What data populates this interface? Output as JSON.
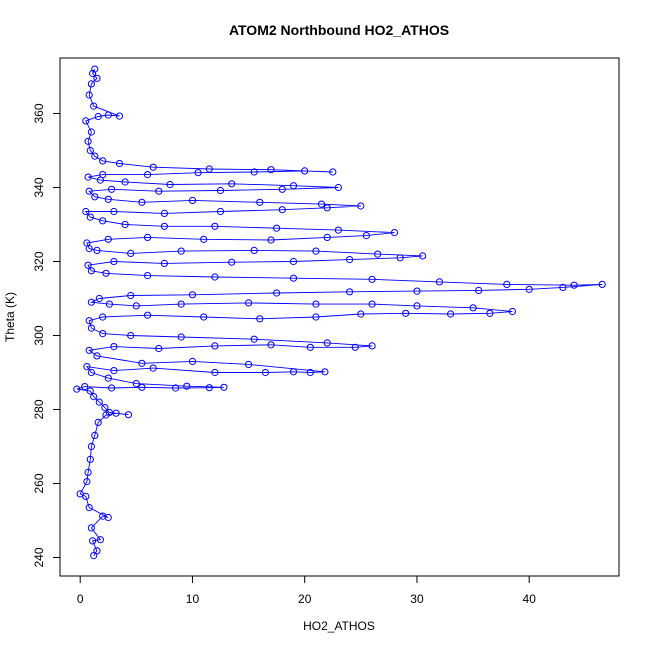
{
  "chart_data": {
    "type": "scatter",
    "title": "ATOM2 Northbound HO2_ATHOS",
    "xlabel": "HO2_ATHOS",
    "ylabel": "Theta (K)",
    "xlim": [
      -1.8,
      48.0
    ],
    "ylim": [
      235.0,
      375.0
    ],
    "xticks": [
      0,
      10,
      20,
      30,
      40
    ],
    "yticks": [
      240,
      260,
      280,
      300,
      320,
      340,
      360
    ],
    "grid": false,
    "legend": "none",
    "series": [
      {
        "color": "#0000ff",
        "marker": "open-circle",
        "connected": true,
        "points": [
          [
            1.2,
            240.5
          ],
          [
            1.5,
            241.8
          ],
          [
            1.1,
            244.5
          ],
          [
            1.8,
            244.8
          ],
          [
            1.0,
            248.0
          ],
          [
            2.0,
            251.2
          ],
          [
            2.5,
            250.8
          ],
          [
            0.8,
            253.5
          ],
          [
            0.5,
            256.5
          ],
          [
            0.0,
            257.2
          ],
          [
            0.6,
            260.5
          ],
          [
            0.7,
            263.0
          ],
          [
            0.9,
            266.5
          ],
          [
            1.0,
            270.0
          ],
          [
            1.3,
            273.0
          ],
          [
            1.6,
            276.5
          ],
          [
            2.3,
            278.5
          ],
          [
            3.2,
            279.0
          ],
          [
            4.3,
            278.6
          ],
          [
            2.6,
            279.2
          ],
          [
            2.2,
            280.5
          ],
          [
            1.7,
            282.0
          ],
          [
            1.2,
            283.5
          ],
          [
            0.9,
            285.0
          ],
          [
            -0.3,
            285.5
          ],
          [
            0.4,
            286.2
          ],
          [
            2.8,
            285.8
          ],
          [
            5.5,
            286.0
          ],
          [
            8.5,
            285.8
          ],
          [
            11.5,
            285.9
          ],
          [
            12.8,
            286.0
          ],
          [
            9.5,
            286.3
          ],
          [
            5.0,
            287.0
          ],
          [
            2.5,
            288.5
          ],
          [
            1.0,
            290.0
          ],
          [
            0.6,
            291.6
          ],
          [
            3.0,
            290.5
          ],
          [
            6.5,
            291.2
          ],
          [
            12.0,
            290.0
          ],
          [
            16.5,
            290.0
          ],
          [
            19.0,
            290.2
          ],
          [
            20.5,
            290.0
          ],
          [
            21.8,
            290.2
          ],
          [
            15.0,
            292.2
          ],
          [
            10.0,
            293.0
          ],
          [
            5.5,
            292.5
          ],
          [
            1.5,
            294.5
          ],
          [
            0.8,
            296.0
          ],
          [
            3.0,
            297.0
          ],
          [
            7.0,
            296.5
          ],
          [
            12.0,
            297.2
          ],
          [
            17.0,
            297.5
          ],
          [
            20.5,
            296.8
          ],
          [
            24.5,
            296.8
          ],
          [
            26.0,
            297.2
          ],
          [
            22.0,
            298.0
          ],
          [
            15.5,
            299.0
          ],
          [
            9.0,
            299.6
          ],
          [
            4.5,
            300.0
          ],
          [
            2.0,
            300.5
          ],
          [
            1.0,
            302.0
          ],
          [
            0.8,
            304.0
          ],
          [
            2.0,
            305.0
          ],
          [
            6.0,
            305.5
          ],
          [
            11.0,
            305.0
          ],
          [
            16.0,
            304.5
          ],
          [
            21.0,
            305.0
          ],
          [
            25.0,
            305.8
          ],
          [
            29.0,
            306.0
          ],
          [
            33.0,
            305.8
          ],
          [
            36.5,
            306.0
          ],
          [
            38.5,
            306.5
          ],
          [
            35.0,
            307.5
          ],
          [
            30.0,
            308.0
          ],
          [
            26.0,
            308.5
          ],
          [
            21.0,
            308.5
          ],
          [
            15.0,
            308.8
          ],
          [
            9.0,
            308.5
          ],
          [
            5.0,
            308.0
          ],
          [
            2.6,
            308.5
          ],
          [
            1.0,
            309.0
          ],
          [
            1.7,
            310.0
          ],
          [
            4.5,
            310.8
          ],
          [
            10.0,
            311.0
          ],
          [
            17.5,
            311.5
          ],
          [
            24.0,
            311.8
          ],
          [
            30.0,
            312.0
          ],
          [
            35.5,
            312.2
          ],
          [
            40.0,
            312.5
          ],
          [
            43.0,
            313.0
          ],
          [
            46.5,
            313.8
          ],
          [
            44.0,
            313.6
          ],
          [
            38.0,
            313.8
          ],
          [
            32.0,
            314.5
          ],
          [
            26.0,
            315.2
          ],
          [
            19.0,
            315.5
          ],
          [
            12.0,
            315.8
          ],
          [
            6.0,
            316.2
          ],
          [
            2.3,
            316.8
          ],
          [
            1.0,
            317.5
          ],
          [
            0.7,
            319.0
          ],
          [
            3.0,
            320.0
          ],
          [
            7.5,
            319.5
          ],
          [
            13.5,
            319.8
          ],
          [
            19.0,
            320.0
          ],
          [
            24.0,
            320.5
          ],
          [
            28.5,
            321.0
          ],
          [
            30.5,
            321.5
          ],
          [
            26.5,
            322.0
          ],
          [
            21.0,
            322.8
          ],
          [
            15.5,
            323.0
          ],
          [
            9.0,
            322.8
          ],
          [
            4.5,
            322.2
          ],
          [
            1.5,
            323.0
          ],
          [
            0.8,
            323.5
          ],
          [
            0.6,
            325.0
          ],
          [
            2.5,
            326.0
          ],
          [
            6.0,
            326.5
          ],
          [
            11.0,
            326.0
          ],
          [
            17.0,
            325.8
          ],
          [
            22.0,
            326.5
          ],
          [
            25.5,
            327.0
          ],
          [
            28.0,
            327.8
          ],
          [
            23.0,
            328.5
          ],
          [
            17.5,
            329.0
          ],
          [
            12.0,
            329.5
          ],
          [
            7.5,
            329.5
          ],
          [
            4.0,
            330.0
          ],
          [
            2.0,
            331.0
          ],
          [
            0.9,
            332.0
          ],
          [
            0.5,
            333.5
          ],
          [
            3.0,
            333.5
          ],
          [
            7.5,
            333.0
          ],
          [
            12.5,
            333.5
          ],
          [
            18.0,
            334.0
          ],
          [
            22.0,
            334.5
          ],
          [
            25.0,
            335.0
          ],
          [
            21.5,
            335.5
          ],
          [
            16.0,
            336.0
          ],
          [
            10.0,
            336.5
          ],
          [
            5.5,
            336.0
          ],
          [
            2.5,
            336.8
          ],
          [
            1.3,
            337.5
          ],
          [
            0.8,
            339.0
          ],
          [
            2.8,
            339.5
          ],
          [
            7.0,
            339.0
          ],
          [
            12.5,
            339.2
          ],
          [
            18.0,
            339.5
          ],
          [
            23.0,
            340.0
          ],
          [
            19.0,
            340.5
          ],
          [
            13.5,
            341.0
          ],
          [
            8.0,
            340.8
          ],
          [
            4.0,
            341.5
          ],
          [
            1.8,
            342.0
          ],
          [
            0.7,
            342.8
          ],
          [
            2.0,
            343.5
          ],
          [
            6.0,
            343.5
          ],
          [
            10.5,
            344.0
          ],
          [
            15.5,
            344.2
          ],
          [
            20.0,
            344.5
          ],
          [
            22.5,
            344.2
          ],
          [
            17.0,
            344.8
          ],
          [
            11.5,
            345.0
          ],
          [
            6.5,
            345.5
          ],
          [
            3.5,
            346.5
          ],
          [
            2.0,
            347.2
          ],
          [
            1.3,
            348.5
          ],
          [
            0.9,
            350.0
          ],
          [
            0.7,
            352.5
          ],
          [
            1.0,
            355.0
          ],
          [
            0.5,
            358.0
          ],
          [
            1.6,
            359.2
          ],
          [
            2.5,
            359.6
          ],
          [
            3.5,
            359.3
          ],
          [
            1.2,
            362.0
          ],
          [
            0.8,
            365.0
          ],
          [
            1.0,
            368.0
          ],
          [
            1.5,
            369.5
          ],
          [
            1.1,
            370.8
          ],
          [
            1.3,
            372.0
          ]
        ]
      }
    ]
  }
}
